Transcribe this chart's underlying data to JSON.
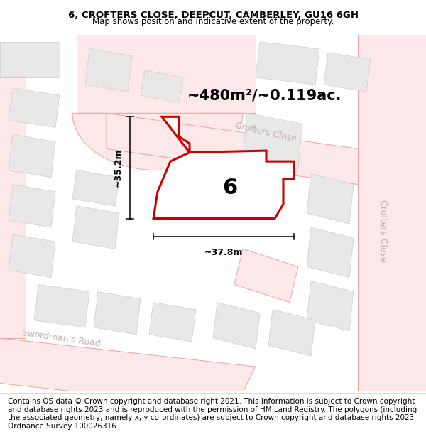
{
  "title": "6, CROFTERS CLOSE, DEEPCUT, CAMBERLEY, GU16 6GH",
  "subtitle": "Map shows position and indicative extent of the property.",
  "area_label": "~480m²/~0.119ac.",
  "width_label": "~37.8m",
  "height_label": "~35.2m",
  "plot_number": "6",
  "map_bg": "#ffffff",
  "road_outline": "#f0a0a0",
  "road_fill": "#fce8e8",
  "building_fill": "#e8e8e8",
  "building_edge": "#cccccc",
  "plot_fill": "#ffffff",
  "plot_edge": "#dd0000",
  "street_color": "#c0b0b0",
  "footer_text": "Contains OS data © Crown copyright and database right 2021. This information is subject to Crown copyright and database rights 2023 and is reproduced with the permission of HM Land Registry. The polygons (including the associated geometry, namely x, y co-ordinates) are subject to Crown copyright and database rights 2023 Ordnance Survey 100026316.",
  "title_fontsize": 9.5,
  "subtitle_fontsize": 8.5,
  "footer_fontsize": 7.5,
  "area_fontsize": 15,
  "measure_fontsize": 9,
  "plot_num_fontsize": 22,
  "street_fontsize": 9
}
